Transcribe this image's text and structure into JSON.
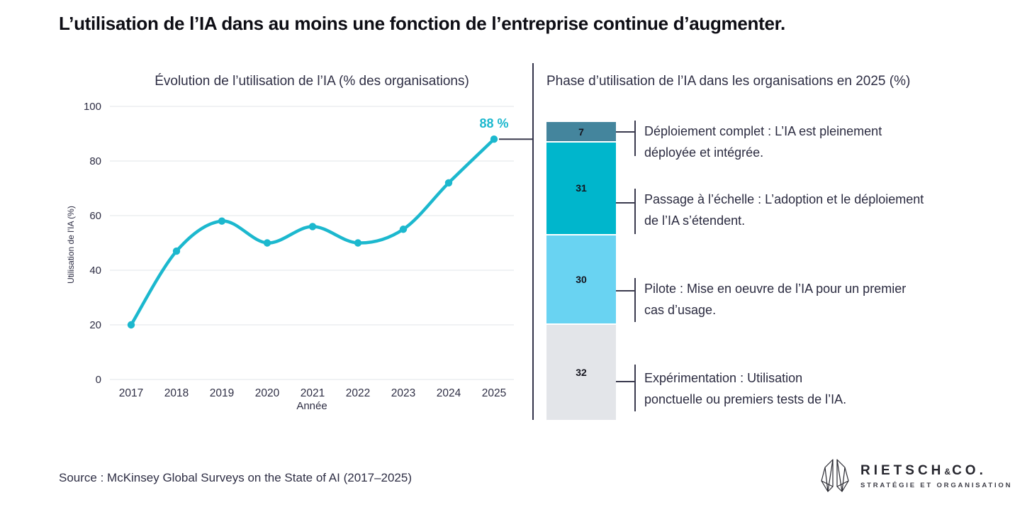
{
  "page": {
    "title": "L’utilisation de l’IA dans au moins une fonction de l’entreprise continue d’augmenter.",
    "source": "Source : McKinsey Global Surveys on the State of AI (2017–2025)"
  },
  "colors": {
    "accent_cyan": "#1cb8ce",
    "navy_text": "#2e2e44",
    "grid_line": "#e8e9ee",
    "connector": "#3a3a4e",
    "divider": "#33334a"
  },
  "logo": {
    "name": "RIETSCH",
    "ampersand": "&",
    "suffix": "CO.",
    "tagline": "STRATÉGIE ET ORGANISATION"
  },
  "chart_data": [
    {
      "type": "line",
      "title": "Évolution de l’utilisation de l’IA (% des organisations)",
      "xlabel": "Année",
      "ylabel": "Utilisation de l'IA (%)",
      "x": [
        "2017",
        "2018",
        "2019",
        "2020",
        "2021",
        "2022",
        "2023",
        "2024",
        "2025"
      ],
      "values": [
        20,
        47,
        58,
        50,
        56,
        50,
        55,
        72,
        88
      ],
      "ylim": [
        0,
        100
      ],
      "yticks": [
        0,
        20,
        40,
        60,
        80,
        100
      ],
      "grid": true,
      "legend_position": "none",
      "line_color": "#1cb8ce",
      "annotation": {
        "x": "2025",
        "y": 88,
        "text": "88 %"
      }
    },
    {
      "type": "bar",
      "stacked": true,
      "title": "Phase d’utilisation de l’IA dans les organisations en 2025 (%)",
      "total": 100,
      "segments": [
        {
          "value": 7,
          "color": "#44859d",
          "lines": [
            "Déploiement complet : L’IA est pleinement",
            "déployée et intégrée."
          ]
        },
        {
          "value": 31,
          "color": "#00b6cc",
          "lines": [
            "Passage à l’échelle : L’adoption et le déploiement",
            "de l’IA s’étendent."
          ]
        },
        {
          "value": 30,
          "color": "#69d3f2",
          "lines": [
            "Pilote : Mise en oeuvre de l’IA pour un premier",
            "cas d’usage."
          ]
        },
        {
          "value": 32,
          "color": "#e3e5e9",
          "lines": [
            "Expérimentation : Utilisation",
            "ponctuelle ou premiers tests de l’IA."
          ]
        }
      ]
    }
  ]
}
